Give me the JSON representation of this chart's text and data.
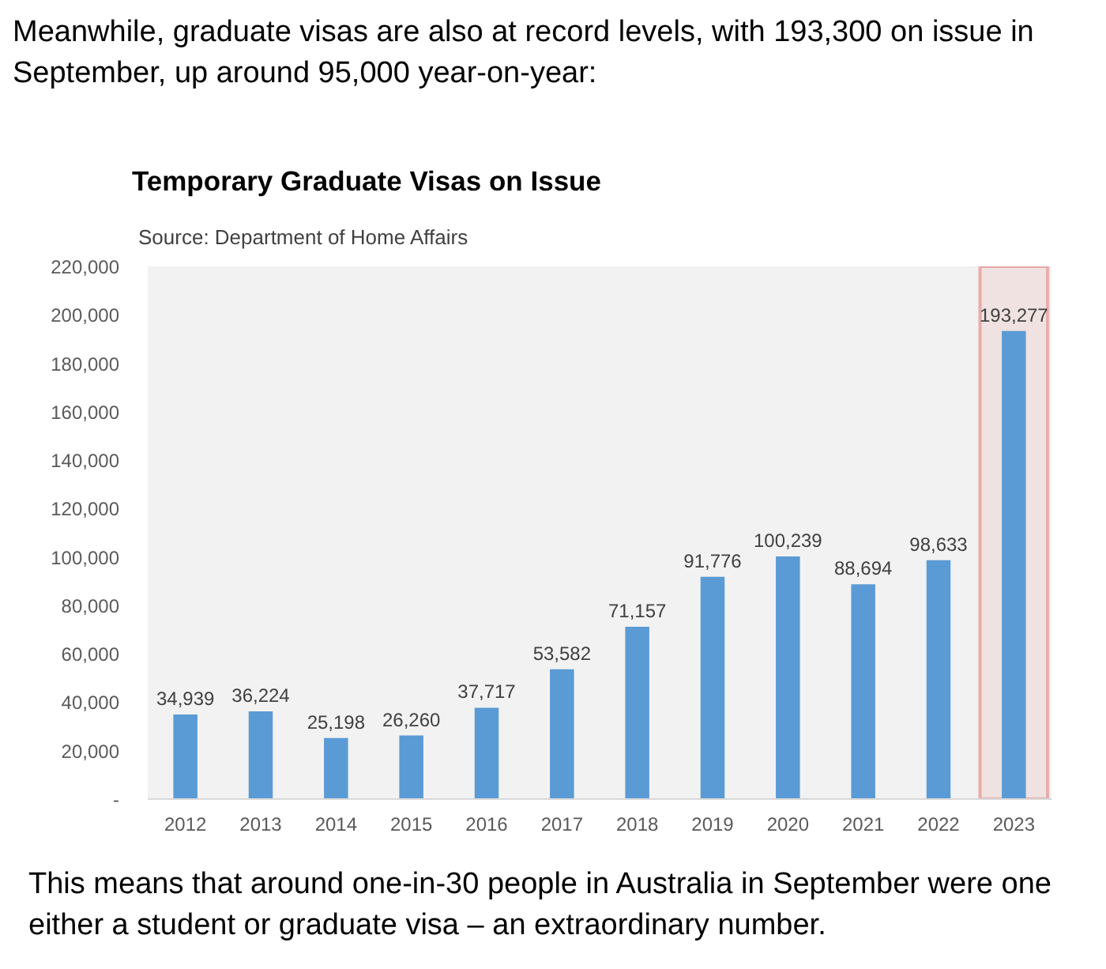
{
  "chart_data": {
    "type": "bar",
    "title": "Temporary Graduate Visas on Issue",
    "subtitle": "Source: Department of Home Affairs",
    "annotations": [
      "Meanwhile, graduate visas are also at record levels, with 193,300 on issue in September, up around 95,000 year-on-year:",
      "This means that around one-in-30 people in Australia in September were one either a student or graduate visa – an extraordinary number."
    ],
    "categories": [
      "2012",
      "2013",
      "2014",
      "2015",
      "2016",
      "2017",
      "2018",
      "2019",
      "2020",
      "2021",
      "2022",
      "2023"
    ],
    "values": [
      34939,
      36224,
      25198,
      26260,
      37717,
      53582,
      71157,
      91776,
      100239,
      88694,
      98633,
      193277
    ],
    "color": "#5b9bd5",
    "value_labels": [
      "34,939",
      "36,224",
      "25,198",
      "26,260",
      "37,717",
      "53,582",
      "71,157",
      "91,776",
      "100,239",
      "88,694",
      "98,633",
      "193,277"
    ],
    "ylim": [
      0,
      220000
    ],
    "yticks": [
      {
        "value": 0,
        "label": "-"
      },
      {
        "value": 20000,
        "label": "20,000"
      },
      {
        "value": 40000,
        "label": "40,000"
      },
      {
        "value": 60000,
        "label": "60,000"
      },
      {
        "value": 80000,
        "label": "80,000"
      },
      {
        "value": 100000,
        "label": "100,000"
      },
      {
        "value": 120000,
        "label": "120,000"
      },
      {
        "value": 140000,
        "label": "140,000"
      },
      {
        "value": 160000,
        "label": "160,000"
      },
      {
        "value": 180000,
        "label": "180,000"
      },
      {
        "value": 200000,
        "label": "200,000"
      },
      {
        "value": 220000,
        "label": "220,000"
      }
    ],
    "grid": false,
    "bands": [
      {
        "axis": "x",
        "from": "2023",
        "to": "2023",
        "color": "#d0201e"
      }
    ]
  }
}
